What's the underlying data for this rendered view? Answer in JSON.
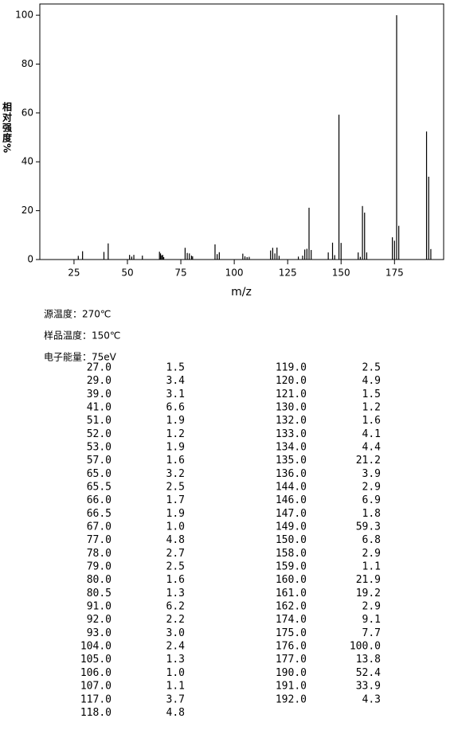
{
  "chart_data": {
    "type": "bar",
    "xlabel": "m/z",
    "ylabel": "相对强度%",
    "x": [
      27,
      29,
      39,
      41,
      51,
      52,
      53,
      57,
      65,
      65.5,
      66,
      66.5,
      67,
      77,
      78,
      79,
      80,
      80.5,
      91,
      92,
      93,
      104,
      105,
      106,
      107,
      117,
      118,
      119,
      120,
      121,
      130,
      132,
      133,
      134,
      135,
      136,
      144,
      146,
      147,
      149,
      150,
      158,
      159,
      160,
      161,
      162,
      174,
      175,
      176,
      177,
      190,
      191,
      192
    ],
    "values": [
      1.5,
      3.4,
      3.1,
      6.6,
      1.9,
      1.2,
      1.9,
      1.6,
      3.2,
      2.5,
      1.7,
      1.9,
      1.0,
      4.8,
      2.7,
      2.5,
      1.6,
      1.3,
      6.2,
      2.2,
      3.0,
      2.4,
      1.3,
      1.0,
      1.1,
      3.7,
      4.8,
      2.5,
      4.9,
      1.5,
      1.2,
      1.6,
      4.1,
      4.4,
      21.2,
      3.9,
      2.9,
      6.9,
      1.8,
      59.3,
      6.8,
      2.9,
      1.1,
      21.9,
      19.2,
      2.9,
      9.1,
      7.7,
      100.0,
      13.8,
      52.4,
      33.9,
      4.3
    ],
    "color": "#000000",
    "xlim": [
      9,
      198
    ],
    "xticks": [
      25,
      50,
      75,
      100,
      125,
      150,
      175
    ],
    "ylim": [
      0,
      104.6
    ],
    "yticks": [
      0,
      20,
      40,
      60,
      80,
      100
    ]
  },
  "info": [
    "源温度：270℃",
    "样品温度：150℃",
    "电子能量：75eV"
  ],
  "table": {
    "rows": [
      [
        "27.0",
        "1.5"
      ],
      [
        "29.0",
        "3.4"
      ],
      [
        "39.0",
        "3.1"
      ],
      [
        "41.0",
        "6.6"
      ],
      [
        "51.0",
        "1.9"
      ],
      [
        "52.0",
        "1.2"
      ],
      [
        "53.0",
        "1.9"
      ],
      [
        "57.0",
        "1.6"
      ],
      [
        "65.0",
        "3.2"
      ],
      [
        "65.5",
        "2.5"
      ],
      [
        "66.0",
        "1.7"
      ],
      [
        "66.5",
        "1.9"
      ],
      [
        "67.0",
        "1.0"
      ],
      [
        "77.0",
        "4.8"
      ],
      [
        "78.0",
        "2.7"
      ],
      [
        "79.0",
        "2.5"
      ],
      [
        "80.0",
        "1.6"
      ],
      [
        "80.5",
        "1.3"
      ],
      [
        "91.0",
        "6.2"
      ],
      [
        "92.0",
        "2.2"
      ],
      [
        "93.0",
        "3.0"
      ],
      [
        "104.0",
        "2.4"
      ],
      [
        "105.0",
        "1.3"
      ],
      [
        "106.0",
        "1.0"
      ],
      [
        "107.0",
        "1.1"
      ],
      [
        "117.0",
        "3.7"
      ],
      [
        "118.0",
        "4.8"
      ],
      [
        "119.0",
        "2.5"
      ],
      [
        "120.0",
        "4.9"
      ],
      [
        "121.0",
        "1.5"
      ],
      [
        "130.0",
        "1.2"
      ],
      [
        "132.0",
        "1.6"
      ],
      [
        "133.0",
        "4.1"
      ],
      [
        "134.0",
        "4.4"
      ],
      [
        "135.0",
        "21.2"
      ],
      [
        "136.0",
        "3.9"
      ],
      [
        "144.0",
        "2.9"
      ],
      [
        "146.0",
        "6.9"
      ],
      [
        "147.0",
        "1.8"
      ],
      [
        "149.0",
        "59.3"
      ],
      [
        "150.0",
        "6.8"
      ],
      [
        "158.0",
        "2.9"
      ],
      [
        "159.0",
        "1.1"
      ],
      [
        "160.0",
        "21.9"
      ],
      [
        "161.0",
        "19.2"
      ],
      [
        "162.0",
        "2.9"
      ],
      [
        "174.0",
        "9.1"
      ],
      [
        "175.0",
        "7.7"
      ],
      [
        "176.0",
        "100.0"
      ],
      [
        "177.0",
        "13.8"
      ],
      [
        "190.0",
        "52.4"
      ],
      [
        "191.0",
        "33.9"
      ],
      [
        "192.0",
        "4.3"
      ]
    ]
  }
}
